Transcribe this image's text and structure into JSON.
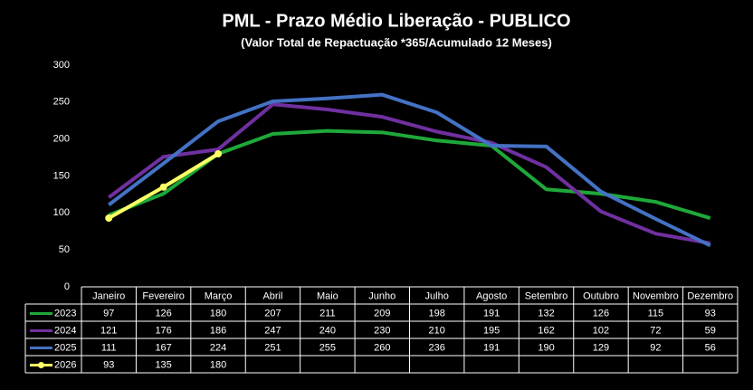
{
  "chart_data": {
    "type": "line",
    "title": "PML - Prazo Médio Liberação - PUBLICO",
    "subtitle": "(Valor Total de Repactuação *365/Acumulado 12 Meses)",
    "categories": [
      "Janeiro",
      "Fevereiro",
      "Março",
      "Abril",
      "Maio",
      "Junho",
      "Julho",
      "Agosto",
      "Setembro",
      "Outubro",
      "Novembro",
      "Dezembro"
    ],
    "series": [
      {
        "name": "2023",
        "color": "#1fa83a",
        "values": [
          97,
          126,
          180,
          207,
          211,
          209,
          198,
          191,
          132,
          126,
          115,
          93
        ]
      },
      {
        "name": "2024",
        "color": "#7030a0",
        "values": [
          121,
          176,
          186,
          247,
          240,
          230,
          210,
          195,
          162,
          102,
          72,
          59
        ]
      },
      {
        "name": "2025",
        "color": "#4472c4",
        "values": [
          111,
          167,
          224,
          251,
          255,
          260,
          236,
          191,
          190,
          129,
          92,
          56
        ]
      },
      {
        "name": "2026",
        "color": "#ffff66",
        "markers": true,
        "values": [
          93,
          135,
          180,
          null,
          null,
          null,
          null,
          null,
          null,
          null,
          null,
          null
        ]
      }
    ],
    "ylim": [
      0,
      300
    ],
    "yticks": [
      0,
      50,
      100,
      150,
      200,
      250,
      300
    ],
    "grid": false
  }
}
